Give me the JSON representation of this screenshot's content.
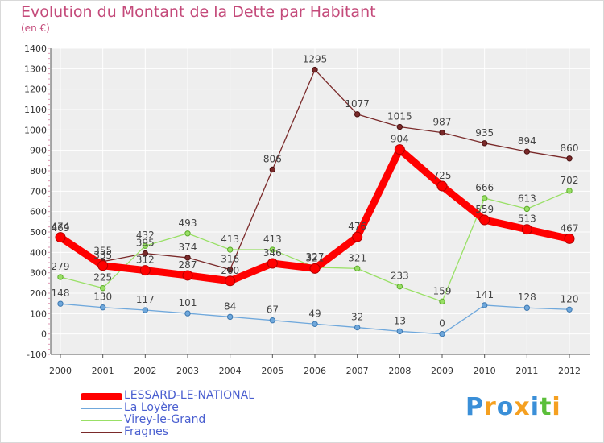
{
  "chart_data": {
    "type": "line",
    "title": "Evolution du Montant de la Dette par Habitant",
    "subtitle": "(en €)",
    "x": [
      "2000",
      "2001",
      "2002",
      "2003",
      "2004",
      "2005",
      "2006",
      "2007",
      "2008",
      "2009",
      "2010",
      "2011",
      "2012"
    ],
    "ylim": [
      -100,
      1400
    ],
    "yticks": [
      -100,
      0,
      100,
      200,
      300,
      400,
      500,
      600,
      700,
      800,
      900,
      1000,
      1100,
      1200,
      1300,
      1400
    ],
    "grid": true,
    "legend_position": "bottom-left",
    "series": [
      {
        "name": "LESSARD-LE-NATIONAL",
        "color": "#ff0000",
        "values": [
          474,
          335,
          312,
          287,
          260,
          346,
          321,
          476,
          904,
          725,
          559,
          513,
          467
        ]
      },
      {
        "name": "La Loyère",
        "color": "#6fa8dc",
        "values": [
          148,
          130,
          117,
          101,
          84,
          67,
          49,
          32,
          13,
          0,
          141,
          128,
          120
        ]
      },
      {
        "name": "Virey-le-Grand",
        "color": "#99e066",
        "values": [
          279,
          225,
          432,
          493,
          413,
          413,
          327,
          321,
          233,
          159,
          666,
          613,
          702
        ]
      },
      {
        "name": "Fragnes",
        "color": "#7a2a2a",
        "values": [
          469,
          355,
          395,
          374,
          316,
          806,
          1295,
          1077,
          1015,
          987,
          935,
          894,
          860
        ]
      }
    ]
  },
  "logo": {
    "letters": [
      "P",
      "r",
      "o",
      "x",
      "i",
      "t",
      "i"
    ],
    "colors": [
      "#3a8fd8",
      "#f5a020",
      "#3a8fd8",
      "#f5a020",
      "#3a8fd8",
      "#5bbf3a",
      "#f5a020"
    ]
  }
}
